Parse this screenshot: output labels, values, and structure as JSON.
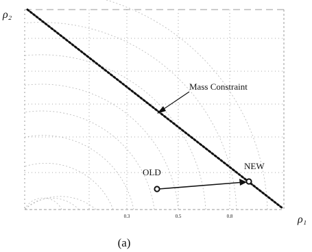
{
  "figure": {
    "axis_labels": {
      "y": "ρ₂",
      "x": "ρ₁"
    },
    "tick_labels": [
      "0.3",
      "0.5",
      "0.8"
    ],
    "annotations": {
      "mass_constraint": "Mass Constraint",
      "old": "OLD",
      "new": "NEW"
    },
    "caption": "(a)"
  },
  "colors": {
    "ink": "#111111",
    "contour": "#b5b5b5",
    "grid": "#8a8a8a"
  }
}
